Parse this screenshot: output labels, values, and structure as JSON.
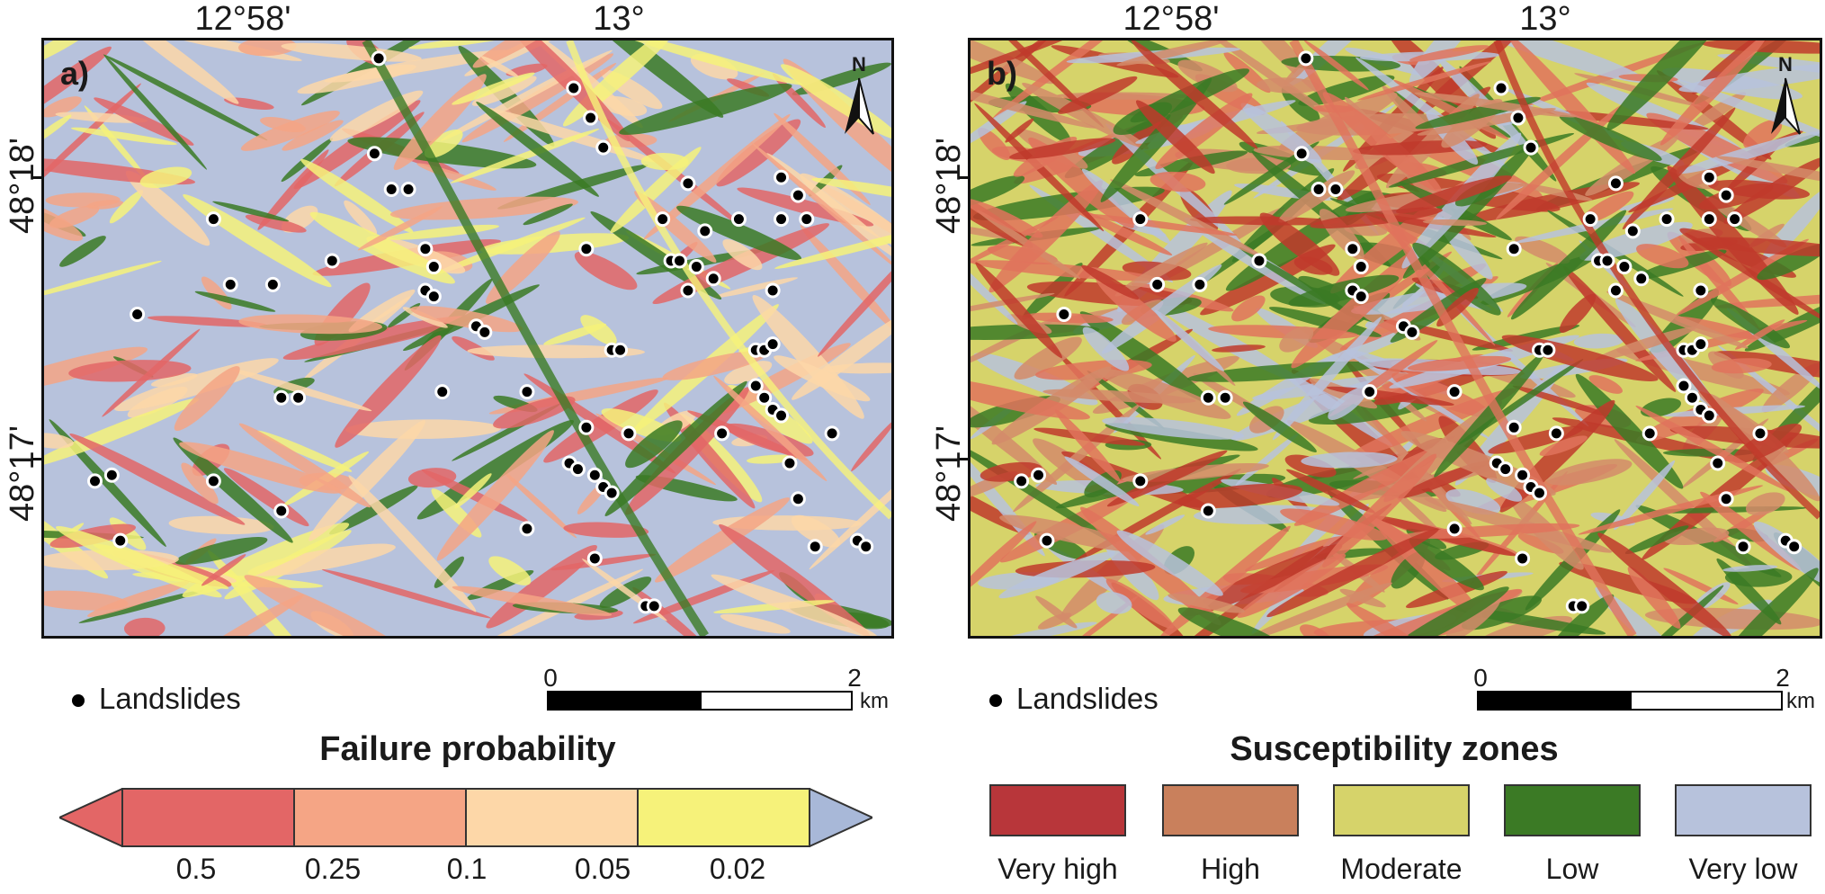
{
  "panels": [
    {
      "letter": "a)",
      "lon_ticks": [
        "12°58'",
        "13°"
      ],
      "lat_ticks": [
        "48°18'",
        "48°17'"
      ],
      "north": "N",
      "base_color": "#b7c2dc",
      "patch_colors": [
        "#3b7a25",
        "#f6f27a",
        "#f5a585",
        "#e36666",
        "#fdd7a8"
      ]
    },
    {
      "letter": "b)",
      "lon_ticks": [
        "12°58'",
        "13°"
      ],
      "lat_ticks": [
        "48°18'",
        "48°17'"
      ],
      "north": "N",
      "base_color": "#d6d36a",
      "patch_colors": [
        "#e0735c",
        "#c0392b",
        "#b7c2dc",
        "#3b7a25",
        "#d48b6a"
      ]
    }
  ],
  "landslides": [
    [
      0.395,
      0.03
    ],
    [
      0.625,
      0.08
    ],
    [
      0.645,
      0.13
    ],
    [
      0.66,
      0.18
    ],
    [
      0.39,
      0.19
    ],
    [
      0.41,
      0.25
    ],
    [
      0.43,
      0.25
    ],
    [
      0.2,
      0.3
    ],
    [
      0.64,
      0.35
    ],
    [
      0.73,
      0.3
    ],
    [
      0.76,
      0.24
    ],
    [
      0.78,
      0.32
    ],
    [
      0.82,
      0.3
    ],
    [
      0.87,
      0.23
    ],
    [
      0.89,
      0.26
    ],
    [
      0.87,
      0.3
    ],
    [
      0.9,
      0.3
    ],
    [
      0.45,
      0.35
    ],
    [
      0.34,
      0.37
    ],
    [
      0.46,
      0.38
    ],
    [
      0.74,
      0.37
    ],
    [
      0.75,
      0.37
    ],
    [
      0.77,
      0.38
    ],
    [
      0.79,
      0.4
    ],
    [
      0.22,
      0.41
    ],
    [
      0.27,
      0.41
    ],
    [
      0.45,
      0.42
    ],
    [
      0.46,
      0.43
    ],
    [
      0.76,
      0.42
    ],
    [
      0.86,
      0.42
    ],
    [
      0.11,
      0.46
    ],
    [
      0.51,
      0.48
    ],
    [
      0.52,
      0.49
    ],
    [
      0.67,
      0.52
    ],
    [
      0.68,
      0.52
    ],
    [
      0.84,
      0.52
    ],
    [
      0.85,
      0.52
    ],
    [
      0.86,
      0.51
    ],
    [
      0.28,
      0.6
    ],
    [
      0.3,
      0.6
    ],
    [
      0.47,
      0.59
    ],
    [
      0.57,
      0.59
    ],
    [
      0.84,
      0.58
    ],
    [
      0.85,
      0.6
    ],
    [
      0.86,
      0.62
    ],
    [
      0.87,
      0.63
    ],
    [
      0.64,
      0.65
    ],
    [
      0.69,
      0.66
    ],
    [
      0.8,
      0.66
    ],
    [
      0.93,
      0.66
    ],
    [
      0.06,
      0.74
    ],
    [
      0.08,
      0.73
    ],
    [
      0.2,
      0.74
    ],
    [
      0.62,
      0.71
    ],
    [
      0.63,
      0.72
    ],
    [
      0.65,
      0.73
    ],
    [
      0.66,
      0.75
    ],
    [
      0.67,
      0.76
    ],
    [
      0.88,
      0.71
    ],
    [
      0.89,
      0.77
    ],
    [
      0.28,
      0.79
    ],
    [
      0.57,
      0.82
    ],
    [
      0.09,
      0.84
    ],
    [
      0.65,
      0.87
    ],
    [
      0.91,
      0.85
    ],
    [
      0.96,
      0.84
    ],
    [
      0.97,
      0.85
    ],
    [
      0.71,
      0.95
    ],
    [
      0.72,
      0.95
    ]
  ],
  "legend_left": {
    "point_label": "Landslides",
    "scale_start": "0",
    "scale_end": "2",
    "scale_unit": "km",
    "title": "Failure probability",
    "colorbar": [
      "#e36666",
      "#f5a585",
      "#fdd7a8",
      "#f6f27a",
      "#3b7a25",
      "#a8b8d8"
    ],
    "breaks": [
      "0.5",
      "0.25",
      "0.1",
      "0.05",
      "0.02"
    ]
  },
  "legend_right": {
    "point_label": "Landslides",
    "scale_start": "0",
    "scale_end": "2",
    "scale_unit": "km",
    "title": "Susceptibility zones",
    "zones": [
      {
        "label": "Very high",
        "color": "#b8363a"
      },
      {
        "label": "High",
        "color": "#c9805c"
      },
      {
        "label": "Moderate",
        "color": "#d6d36a"
      },
      {
        "label": "Low",
        "color": "#3b7a25"
      },
      {
        "label": "Very low",
        "color": "#b7c2dc"
      }
    ]
  }
}
